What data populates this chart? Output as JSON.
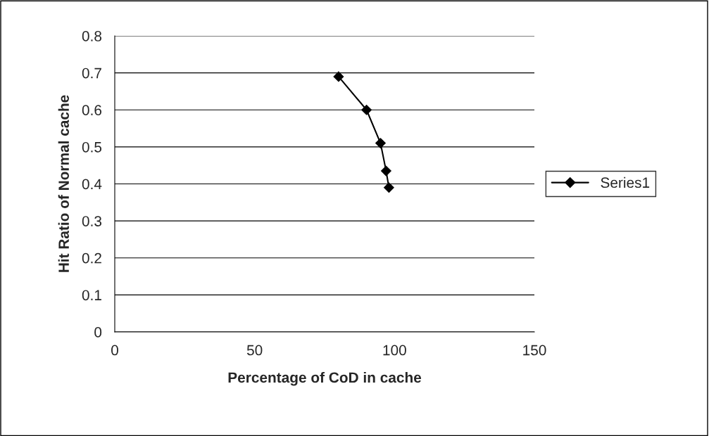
{
  "chart_data": {
    "type": "line",
    "xlabel": "Percentage of CoD in cache",
    "ylabel": "Hit Ratio of Normal cache",
    "x": [
      80,
      90,
      95,
      97,
      98
    ],
    "series": [
      {
        "name": "Series1",
        "color": "#000000",
        "values": [
          0.69,
          0.6,
          0.51,
          0.435,
          0.39
        ]
      }
    ],
    "xlim": [
      0,
      150
    ],
    "xticks": [
      0,
      50,
      100,
      150
    ],
    "ylim": [
      0,
      0.8
    ],
    "yticks": [
      0,
      0.1,
      0.2,
      0.3,
      0.4,
      0.5,
      0.6,
      0.7,
      0.8
    ],
    "grid": "y",
    "legend": "right",
    "marker": "diamond",
    "line_style": "solid"
  }
}
